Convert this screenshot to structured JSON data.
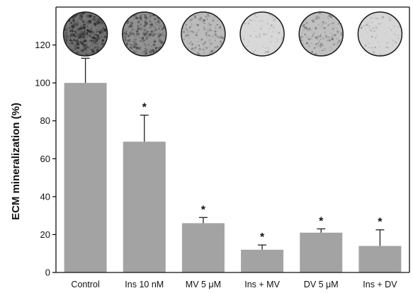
{
  "chart_data": {
    "type": "bar",
    "ylabel": "ECM mineralization (%)",
    "xlabel": "",
    "ylim": [
      0,
      140
    ],
    "yticks": [
      0,
      20,
      40,
      60,
      80,
      100,
      120
    ],
    "grid": false,
    "bar_color": "#a3a3a3",
    "categories": [
      "Control",
      "Ins 10 nM",
      "MV 5 μM",
      "Ins + MV",
      "DV 5 μM",
      "Ins + DV"
    ],
    "values": [
      100,
      69,
      26,
      12,
      21,
      14
    ],
    "errors": [
      13,
      14,
      3,
      2.5,
      2,
      8.5
    ],
    "significance": [
      "",
      "*",
      "*",
      "*",
      "*",
      "*"
    ],
    "well_images": [
      {
        "stain_level": 1.0
      },
      {
        "stain_level": 0.72
      },
      {
        "stain_level": 0.35
      },
      {
        "stain_level": 0.08
      },
      {
        "stain_level": 0.3
      },
      {
        "stain_level": 0.1
      }
    ]
  }
}
